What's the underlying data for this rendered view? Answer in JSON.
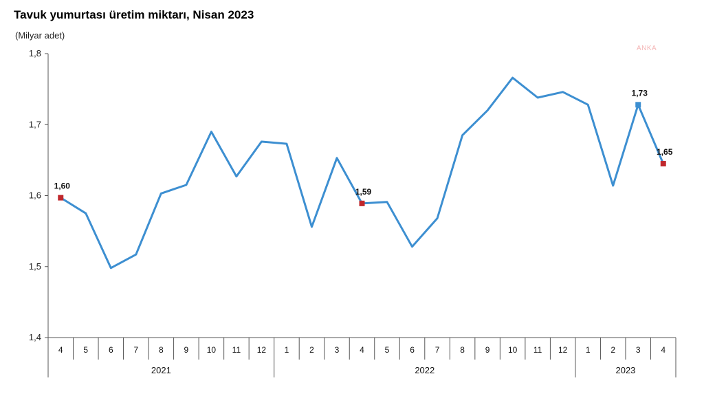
{
  "title": "Tavuk yumurtası üretim miktarı, Nisan 2023",
  "unit_label": "(Milyar adet)",
  "watermark": "ANKA",
  "colors": {
    "line": "#3d8fd1",
    "highlight": "#c0282d",
    "axis": "#555555"
  },
  "chart_data": {
    "type": "line",
    "title": "Tavuk yumurtası üretim miktarı, Nisan 2023",
    "ylabel": "(Milyar adet)",
    "ylim": [
      1.4,
      1.8
    ],
    "y_ticks": [
      "1,4",
      "1,5",
      "1,6",
      "1,7",
      "1,8"
    ],
    "y_tick_values": [
      1.4,
      1.5,
      1.6,
      1.7,
      1.8
    ],
    "categories": [
      "4",
      "5",
      "6",
      "7",
      "8",
      "9",
      "10",
      "11",
      "12",
      "1",
      "2",
      "3",
      "4",
      "5",
      "6",
      "7",
      "8",
      "9",
      "10",
      "11",
      "12",
      "1",
      "2",
      "3",
      "4"
    ],
    "year_groups": [
      {
        "label": "2021",
        "count": 9
      },
      {
        "label": "2022",
        "count": 12
      },
      {
        "label": "2023",
        "count": 4
      }
    ],
    "values": [
      1.597,
      1.575,
      1.498,
      1.517,
      1.603,
      1.615,
      1.69,
      1.627,
      1.676,
      1.673,
      1.556,
      1.653,
      1.589,
      1.591,
      1.528,
      1.568,
      1.685,
      1.72,
      1.766,
      1.738,
      1.746,
      1.728,
      1.614,
      1.728,
      1.645
    ],
    "data_labels": [
      {
        "index": 0,
        "text": "1,60",
        "marker": "highlight"
      },
      {
        "index": 12,
        "text": "1,59",
        "marker": "highlight"
      },
      {
        "index": 23,
        "text": "1,73",
        "marker": "line"
      },
      {
        "index": 24,
        "text": "1,65",
        "marker": "highlight"
      }
    ],
    "grid": false
  }
}
